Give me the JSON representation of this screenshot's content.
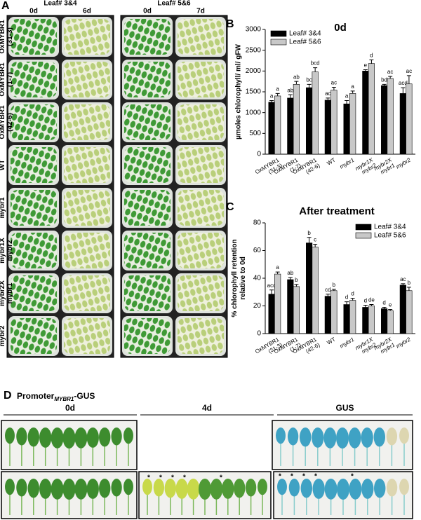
{
  "panel_a": {
    "label": "A",
    "groups": [
      {
        "title": "Leaf# 3&4",
        "days": [
          "0d",
          "6d"
        ]
      },
      {
        "title": "Leaf# 5&6",
        "days": [
          "0d",
          "7d"
        ]
      }
    ],
    "rows": [
      "OxMYBR1 (31-3)",
      "OxMYBR1 (1-7)",
      "OxMYBR1 (42-6)",
      "WT",
      "mybr1",
      "mybr1X mybr2",
      "mybr2X mybr1",
      "mybr2"
    ]
  },
  "chart_data": [
    {
      "type": "bar",
      "panel_label": "B",
      "title": "0d",
      "y_label": "µmoles chlorophyll/ ml/ gFW",
      "categories": [
        "OxMYBR1 (31-3)",
        "OxMYBR1 (1-7)",
        "OxMYBR1 (42-6)",
        "WT",
        "mybr1",
        "mybr1X mybr2",
        "mybr2X mybr1",
        "mybr2"
      ],
      "series": [
        {
          "name": "Leaf# 3&4",
          "color": "#000000",
          "values": [
            1250,
            1350,
            1600,
            1300,
            1210,
            2000,
            1650,
            1460
          ],
          "errors": [
            40,
            80,
            80,
            50,
            80,
            30,
            30,
            140
          ],
          "letters": [
            "a",
            "ab",
            "bc",
            "ac",
            "a",
            "e",
            "bd",
            "acd"
          ]
        },
        {
          "name": "Leaf# 5&6",
          "color": "#c8c8c8",
          "values": [
            1400,
            1680,
            1980,
            1540,
            1460,
            2180,
            1820,
            1690
          ],
          "errors": [
            60,
            70,
            100,
            70,
            60,
            90,
            50,
            200
          ],
          "letters": [
            "a",
            "ab",
            "bcd",
            "ac",
            "a",
            "d",
            "ac",
            "ac"
          ]
        }
      ],
      "ylim": [
        0,
        3000
      ],
      "yticks": [
        0,
        500,
        1000,
        1500,
        2000,
        2500,
        3000
      ],
      "legend": "upper left"
    },
    {
      "type": "bar",
      "panel_label": "C",
      "title": "After treatment",
      "y_label": "% chlorophyll retention relative to 0d",
      "categories": [
        "OxMYBR1 (31-3)",
        "OxMYBR1 (1-7)",
        "OxMYBR1 (42-6)",
        "WT",
        "mybr1",
        "mybr1X mybr2",
        "mybr2X mybr1",
        "mybr2"
      ],
      "series": [
        {
          "name": "Leaf# 3&4",
          "color": "#000000",
          "values": [
            28.5,
            39,
            65.5,
            27,
            21,
            19,
            18,
            35
          ],
          "errors": [
            3,
            1.5,
            4,
            1.5,
            2,
            1.5,
            1,
            1
          ],
          "letters": [
            "acd",
            "ab",
            "b",
            "cd",
            "d",
            "d",
            "d",
            "ac"
          ]
        },
        {
          "name": "Leaf# 5&6",
          "color": "#c8c8c8",
          "values": [
            43,
            34,
            62.5,
            31,
            24,
            20,
            16.5,
            31
          ],
          "errors": [
            1.5,
            1.5,
            2,
            1,
            1.5,
            1,
            1,
            2.5
          ],
          "letters": [
            "a",
            "b",
            "c",
            "b",
            "d",
            "de",
            "e",
            "b"
          ]
        }
      ],
      "ylim": [
        0,
        80
      ],
      "yticks": [
        0,
        20,
        40,
        60,
        80
      ],
      "legend": "upper right"
    }
  ],
  "panel_d": {
    "label": "D",
    "title_prefix": "Promoter",
    "title_sub": "MYBR1",
    "title_suffix": "-GUS",
    "columns": [
      "0d",
      "4d",
      "GUS"
    ],
    "asterisks_4d": [
      "*",
      "*",
      "*",
      "*",
      "*"
    ],
    "asterisks_gus": [
      "*",
      "*",
      "*",
      "*",
      "*"
    ]
  }
}
